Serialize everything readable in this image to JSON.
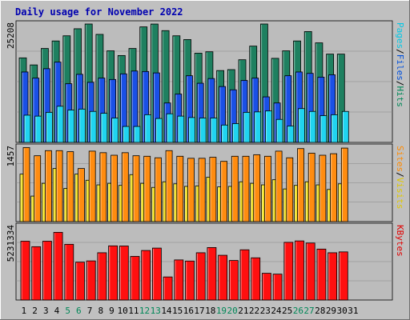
{
  "chart_data": {
    "type": "bar",
    "title": "Daily usage for November 2022",
    "days": [
      "1",
      "2",
      "3",
      "4",
      "5",
      "6",
      "7",
      "8",
      "9",
      "10",
      "11",
      "12",
      "13",
      "14",
      "15",
      "16",
      "17",
      "18",
      "19",
      "20",
      "21",
      "22",
      "23",
      "24",
      "25",
      "26",
      "27",
      "28",
      "29",
      "30",
      "31"
    ],
    "weekend_days": [
      "5",
      "6",
      "12",
      "13",
      "19",
      "20",
      "26",
      "27"
    ],
    "panels": [
      {
        "id": "hits",
        "ymax_label": "25208",
        "ymax": 25208,
        "axis_words": [
          {
            "text": "Pages",
            "color": "#00c8e6"
          },
          {
            "text": "/",
            "color": "#000000"
          },
          {
            "text": "Files",
            "color": "#0050dd"
          },
          {
            "text": "/",
            "color": "#000000"
          },
          {
            "text": "Hits",
            "color": "#008858"
          }
        ],
        "series": [
          {
            "name": "Hits",
            "color": "#1e8060",
            "values": [
              18000,
              16500,
              20000,
              21600,
              22700,
              24200,
              25208,
              23000,
              19500,
              18500,
              20000,
              24600,
              25200,
              23800,
              22700,
              21900,
              19000,
              19300,
              15300,
              15500,
              17600,
              20500,
              25208,
              17900,
              19500,
              21600,
              23600,
              21200,
              18800,
              18800,
              0
            ]
          },
          {
            "name": "Files",
            "color": "#1a50e6",
            "values": [
              15000,
              13700,
              15700,
              17100,
              12500,
              14500,
              12800,
              13700,
              13400,
              14600,
              15200,
              15100,
              14800,
              8400,
              10300,
              14200,
              12600,
              13600,
              11900,
              11200,
              13200,
              13700,
              9700,
              8400,
              14200,
              15000,
              14700,
              13900,
              14400,
              0,
              0
            ]
          },
          {
            "name": "Pages",
            "color": "#20d4f0",
            "values": [
              5800,
              5600,
              6400,
              7700,
              6900,
              7100,
              6600,
              6200,
              5200,
              3400,
              3400,
              5900,
              5100,
              6100,
              5600,
              5300,
              5200,
              5200,
              3700,
              4000,
              6400,
              6500,
              6700,
              4900,
              3500,
              7200,
              6600,
              5700,
              5900,
              6600,
              0
            ]
          }
        ]
      },
      {
        "id": "visits",
        "ymax_label": "1457",
        "ymax": 1457,
        "axis_words": [
          {
            "text": "Sites",
            "color": "#ff8a00"
          },
          {
            "text": "/",
            "color": "#000000"
          },
          {
            "text": "Visits",
            "color": "#e0c800"
          }
        ],
        "series": [
          {
            "name": "Visits",
            "color": "#f0e020",
            "values": [
              930,
              500,
              750,
              1040,
              650,
              930,
              810,
              720,
              750,
              710,
              920,
              750,
              670,
              780,
              740,
              690,
              700,
              870,
              680,
              690,
              780,
              750,
              720,
              820,
              640,
              710,
              780,
              720,
              630,
              740,
              0
            ]
          },
          {
            "name": "Sites",
            "color": "#ff8c10",
            "values": [
              1450,
              1290,
              1390,
              1390,
              1370,
              1040,
              1380,
              1350,
              1300,
              1350,
              1290,
              1280,
              1250,
              1390,
              1280,
              1240,
              1240,
              1260,
              1180,
              1280,
              1280,
              1310,
              1280,
              1380,
              1250,
              1430,
              1340,
              1300,
              1330,
              1440,
              0
            ]
          }
        ]
      },
      {
        "id": "kbytes",
        "ymax_label": "5231334",
        "ymax": 5231334,
        "axis_words": [
          {
            "text": "KBytes",
            "color": "#e00000"
          }
        ],
        "series": [
          {
            "name": "KBytes",
            "color": "#ff1010",
            "values": [
              4180000,
              3790000,
              4180000,
              4810000,
              3960000,
              2690000,
              2780000,
              3360000,
              3850000,
              3840000,
              3100000,
              3520000,
              3690000,
              1640000,
              2850000,
              2770000,
              3360000,
              3730000,
              3180000,
              2810000,
              3570000,
              3000000,
              1900000,
              1840000,
              4100000,
              4200000,
              4050000,
              3620000,
              3360000,
              3420000,
              0
            ]
          }
        ]
      }
    ]
  }
}
